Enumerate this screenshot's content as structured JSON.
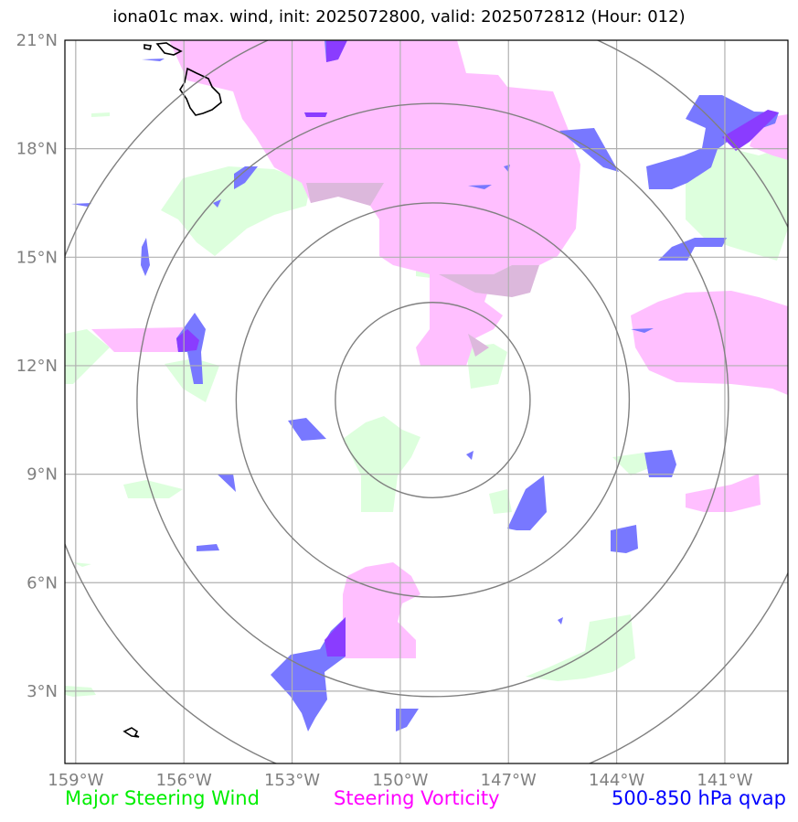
{
  "title": "iona01c max. wind, init: 2025072800, valid: 2025072812 (Hour: 012)",
  "legend": {
    "wind": {
      "label": "Major Steering Wind",
      "color": "#00ee00"
    },
    "vorticity": {
      "label": "Steering Vorticity",
      "color": "#ff00ff"
    },
    "qvap": {
      "label": "500-850 hPa qvap",
      "color": "#0000ff"
    }
  },
  "map": {
    "x_ticks": [
      "159°W",
      "156°W",
      "153°W",
      "150°W",
      "147°W",
      "144°W",
      "141°W"
    ],
    "y_ticks": [
      "21°N",
      "18°N",
      "15°N",
      "12°N",
      "9°N",
      "6°N",
      "3°N"
    ],
    "lon_range": [
      -159.3,
      -139.25
    ],
    "lat_range": [
      1.0,
      21.0
    ],
    "storm_center": {
      "lon": -149.1,
      "lat": 11.05
    },
    "range_rings_deg": [
      2.7,
      5.45,
      8.2,
      10.95
    ],
    "gridlines": true,
    "colors": {
      "wind_fill": "#ddffdd",
      "vorticity_fill": "#ffbfff",
      "qvap_fill": "#7878ff",
      "ring": "#808080",
      "grid": "#b0b0b0"
    }
  }
}
